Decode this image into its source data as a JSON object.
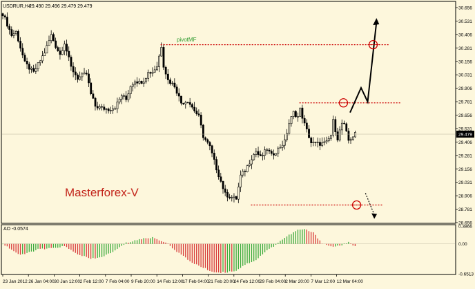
{
  "header": {
    "instrument_label": "USDRUR,H4",
    "ohlc_label": "29.490 29.496 29.479 29.479",
    "watermark": "Masterforex-V"
  },
  "colors": {
    "background": "#fdf7dc",
    "candle": "#000000",
    "level_line": "#cc0000",
    "pivot_label": "#2e9a2e",
    "ao_up": "#3caa3c",
    "ao_down": "#d83a3a",
    "current_price_bg": "#000000",
    "text": "#000000"
  },
  "chart_data": [
    {
      "type": "candlestick",
      "title": "USDRUR,H4",
      "ohlc_readout": "29.490 29.496 29.479 29.479",
      "time_labels": [
        "23 Jan 2012",
        "26 Jan 04:00",
        "30 Jan 12:00",
        "2 Feb 12:00",
        "7 Feb 04:00",
        "9 Feb 20:00",
        "14 Feb 12:00",
        "17 Feb 04:00",
        "21 Feb 20:00",
        "24 Feb 12:00",
        "29 Feb 04:00",
        "2 Mar 20:00",
        "7 Mar 12:00",
        "12 Mar 04:00"
      ],
      "y_tick_labels": [
        "30.656",
        "30.531",
        "30.406",
        "30.281",
        "30.156",
        "30.031",
        "29.906",
        "29.781",
        "29.656",
        "29.531",
        "29.406",
        "29.281",
        "29.156",
        "29.031",
        "28.906",
        "28.781",
        "28.656"
      ],
      "ylim": [
        28.656,
        30.656
      ],
      "current_price": 29.479,
      "grid": false,
      "close_path": [
        [
          0,
          30.6
        ],
        [
          4,
          30.4
        ],
        [
          6,
          30.43
        ],
        [
          10,
          30.14
        ],
        [
          14,
          30.05
        ],
        [
          19,
          30.24
        ],
        [
          22,
          30.4
        ],
        [
          24,
          30.3
        ],
        [
          26,
          30.22
        ],
        [
          28,
          30.33
        ],
        [
          31,
          30.1
        ],
        [
          34,
          30.0
        ],
        [
          38,
          30.04
        ],
        [
          40,
          29.85
        ],
        [
          42,
          29.74
        ],
        [
          45,
          29.72
        ],
        [
          48,
          29.71
        ],
        [
          51,
          29.73
        ],
        [
          54,
          29.84
        ],
        [
          56,
          29.8
        ],
        [
          58,
          29.93
        ],
        [
          60,
          29.98
        ],
        [
          62,
          29.96
        ],
        [
          64,
          29.98
        ],
        [
          66,
          30.05
        ],
        [
          68,
          30.06
        ],
        [
          70,
          30.11
        ],
        [
          72,
          30.3
        ],
        [
          73,
          30.12
        ],
        [
          75,
          29.98
        ],
        [
          78,
          29.93
        ],
        [
          81,
          29.77
        ],
        [
          84,
          29.79
        ],
        [
          86,
          29.73
        ],
        [
          89,
          29.64
        ],
        [
          91,
          29.46
        ],
        [
          94,
          29.36
        ],
        [
          97,
          29.16
        ],
        [
          99,
          29.04
        ],
        [
          101,
          28.92
        ],
        [
          104,
          28.89
        ],
        [
          106,
          28.88
        ],
        [
          108,
          29.09
        ],
        [
          110,
          29.14
        ],
        [
          113,
          29.26
        ],
        [
          115,
          29.32
        ],
        [
          117,
          29.26
        ],
        [
          120,
          29.34
        ],
        [
          122,
          29.28
        ],
        [
          125,
          29.34
        ],
        [
          128,
          29.41
        ],
        [
          130,
          29.58
        ],
        [
          132,
          29.68
        ],
        [
          134,
          29.64
        ],
        [
          135,
          29.71
        ],
        [
          137,
          29.57
        ],
        [
          140,
          29.4
        ],
        [
          142,
          29.39
        ],
        [
          145,
          29.39
        ],
        [
          147,
          29.4
        ],
        [
          149,
          29.47
        ],
        [
          150,
          29.6
        ],
        [
          152,
          29.44
        ],
        [
          154,
          29.58
        ],
        [
          155,
          29.56
        ],
        [
          157,
          29.42
        ],
        [
          158,
          29.44
        ],
        [
          160,
          29.48
        ]
      ],
      "annotations": {
        "pivot_label": "pivotMF",
        "pivot_level": 30.311,
        "resistance_level": 29.77,
        "support_level": 28.82,
        "forecast_up": [
          [
            158,
            29.68
          ],
          [
            163,
            29.91
          ],
          [
            166,
            29.78
          ],
          [
            170,
            30.52
          ]
        ],
        "forecast_down": [
          [
            165,
            28.93
          ],
          [
            169,
            28.73
          ]
        ]
      }
    },
    {
      "type": "bar",
      "title": "AO -0.0574",
      "y_tick_labels": [
        "0.3866",
        "0.00",
        "-0.6513"
      ],
      "ylim": [
        -0.6513,
        0.3866
      ],
      "current_value": -0.0574,
      "profile": [
        [
          0,
          0.0
        ],
        [
          8,
          -0.25
        ],
        [
          16,
          -0.12
        ],
        [
          22,
          -0.1
        ],
        [
          28,
          -0.05
        ],
        [
          33,
          -0.2
        ],
        [
          40,
          -0.33
        ],
        [
          44,
          -0.3
        ],
        [
          50,
          -0.18
        ],
        [
          56,
          0.02
        ],
        [
          62,
          0.1
        ],
        [
          68,
          0.14
        ],
        [
          74,
          0.03
        ],
        [
          80,
          -0.2
        ],
        [
          85,
          -0.38
        ],
        [
          90,
          -0.5
        ],
        [
          96,
          -0.62
        ],
        [
          101,
          -0.62
        ],
        [
          106,
          -0.58
        ],
        [
          110,
          -0.45
        ],
        [
          115,
          -0.35
        ],
        [
          119,
          -0.18
        ],
        [
          123,
          -0.05
        ],
        [
          127,
          0.1
        ],
        [
          131,
          0.22
        ],
        [
          134,
          0.3
        ],
        [
          137,
          0.32
        ],
        [
          141,
          0.24
        ],
        [
          145,
          0.02
        ],
        [
          149,
          -0.06
        ],
        [
          153,
          -0.04
        ],
        [
          157,
          0.03
        ],
        [
          160,
          -0.06
        ]
      ]
    }
  ]
}
